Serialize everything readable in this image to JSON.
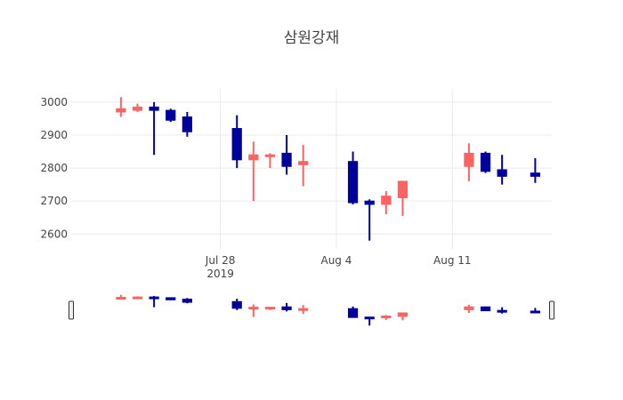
{
  "chart_data": {
    "type": "candlestick",
    "title": "삼원강재",
    "xlabel": "",
    "ylabel": "",
    "y_ticks": [
      "2600",
      "2700",
      "2800",
      "2900",
      "3000"
    ],
    "y_tick_values": [
      2600,
      2700,
      2800,
      2900,
      3000
    ],
    "x_ticks": [
      {
        "date": "2019-07-28",
        "label": "Jul 28",
        "sublabel": "2019"
      },
      {
        "date": "2019-08-04",
        "label": "Aug 4",
        "sublabel": ""
      },
      {
        "date": "2019-08-11",
        "label": "Aug 11",
        "sublabel": ""
      }
    ],
    "x_range": [
      "2019-07-19",
      "2019-08-17"
    ],
    "y_range": [
      2555,
      3040
    ],
    "increasing_color": "#ff6361",
    "decreasing_color": "#00009c",
    "grid": true,
    "rangeslider": true,
    "candles": [
      {
        "date": "2019-07-22",
        "open": 2970,
        "high": 3015,
        "low": 2955,
        "close": 2980
      },
      {
        "date": "2019-07-23",
        "open": 2975,
        "high": 2995,
        "low": 2970,
        "close": 2985
      },
      {
        "date": "2019-07-24",
        "open": 2985,
        "high": 3000,
        "low": 2840,
        "close": 2975
      },
      {
        "date": "2019-07-25",
        "open": 2975,
        "high": 2980,
        "low": 2940,
        "close": 2945
      },
      {
        "date": "2019-07-26",
        "open": 2955,
        "high": 2970,
        "low": 2895,
        "close": 2910
      },
      {
        "date": "2019-07-29",
        "open": 2920,
        "high": 2960,
        "low": 2800,
        "close": 2825
      },
      {
        "date": "2019-07-30",
        "open": 2825,
        "high": 2880,
        "low": 2700,
        "close": 2840
      },
      {
        "date": "2019-07-31",
        "open": 2835,
        "high": 2845,
        "low": 2800,
        "close": 2840
      },
      {
        "date": "2019-08-01",
        "open": 2845,
        "high": 2900,
        "low": 2780,
        "close": 2805
      },
      {
        "date": "2019-08-02",
        "open": 2810,
        "high": 2870,
        "low": 2745,
        "close": 2820
      },
      {
        "date": "2019-08-05",
        "open": 2820,
        "high": 2850,
        "low": 2690,
        "close": 2695
      },
      {
        "date": "2019-08-06",
        "open": 2700,
        "high": 2705,
        "low": 2580,
        "close": 2690
      },
      {
        "date": "2019-08-07",
        "open": 2690,
        "high": 2730,
        "low": 2660,
        "close": 2715
      },
      {
        "date": "2019-08-08",
        "open": 2710,
        "high": 2760,
        "low": 2655,
        "close": 2760
      },
      {
        "date": "2019-08-12",
        "open": 2805,
        "high": 2875,
        "low": 2760,
        "close": 2845
      },
      {
        "date": "2019-08-13",
        "open": 2845,
        "high": 2850,
        "low": 2785,
        "close": 2790
      },
      {
        "date": "2019-08-14",
        "open": 2795,
        "high": 2840,
        "low": 2750,
        "close": 2775
      },
      {
        "date": "2019-08-16",
        "open": 2785,
        "high": 2830,
        "low": 2755,
        "close": 2775
      }
    ]
  }
}
